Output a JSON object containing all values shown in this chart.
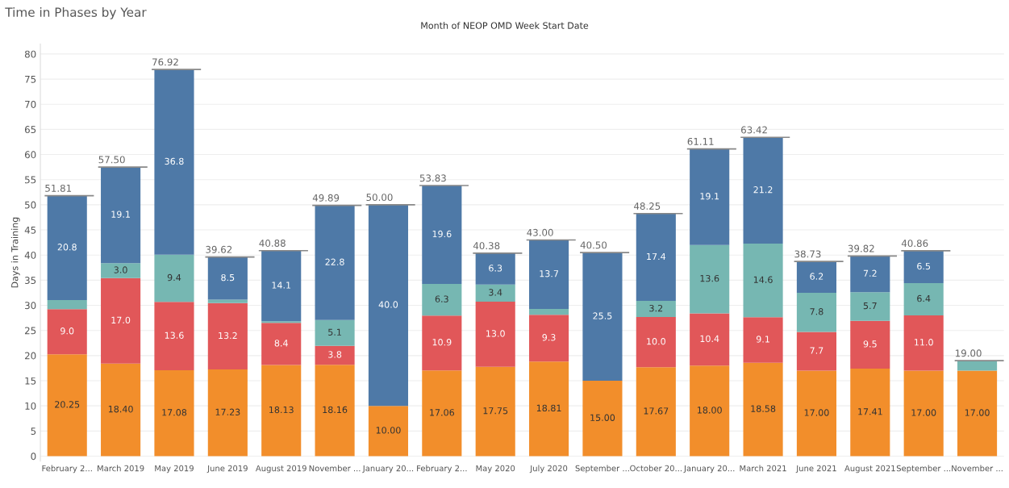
{
  "chart_data": {
    "type": "bar",
    "stacked": true,
    "title": "Time in Phases by Year",
    "subtitle": "Month of NEOP OMD Week Start Date",
    "ylabel": "Days in Training",
    "categories": [
      "February 2...",
      "March 2019",
      "May 2019",
      "June 2019",
      "August 2019",
      "November ...",
      "January 20...",
      "February 2...",
      "May 2020",
      "July 2020",
      "September ...",
      "October 20...",
      "January 20...",
      "March 2021",
      "June 2021",
      "August 2021",
      "September ...",
      "November ..."
    ],
    "series": [
      {
        "color": "#f28e2b",
        "values": [
          20.25,
          18.4,
          17.08,
          17.23,
          18.13,
          18.16,
          10.0,
          17.06,
          17.75,
          18.81,
          15.0,
          17.67,
          18.0,
          18.58,
          17.0,
          17.41,
          17.0,
          17.0
        ],
        "value_labels": [
          "20.25",
          "18.40",
          "17.08",
          "17.23",
          "18.13",
          "18.16",
          "10.00",
          "17.06",
          "17.75",
          "18.81",
          "15.00",
          "17.67",
          "18.00",
          "18.58",
          "17.00",
          "17.41",
          "17.00",
          "17.00"
        ]
      },
      {
        "color": "#e15759",
        "values": [
          9.0,
          17.0,
          13.6,
          13.2,
          8.4,
          3.8,
          null,
          10.9,
          12.97,
          9.3,
          null,
          10.0,
          10.4,
          9.06,
          7.7,
          9.5,
          11.0,
          null
        ],
        "value_labels": [
          "9.0",
          "17.0",
          "13.6",
          "13.2",
          "8.4",
          "3.8",
          null,
          "10.9",
          "13.0",
          "9.3",
          null,
          "10.0",
          "10.4",
          "9.1",
          "7.7",
          "9.5",
          "11.0",
          null
        ]
      },
      {
        "color": "#76b7b2",
        "values": [
          1.8,
          3.0,
          9.4,
          0.69,
          0.3,
          5.1,
          null,
          6.3,
          3.4,
          1.19,
          null,
          3.2,
          13.6,
          14.62,
          7.8,
          5.7,
          6.4,
          2.0
        ],
        "value_labels": [
          null,
          "3.0",
          "9.4",
          null,
          null,
          "5.1",
          null,
          "6.3",
          "3.4",
          null,
          null,
          "3.2",
          "13.6",
          "14.6",
          "7.8",
          "5.7",
          "6.4",
          null
        ]
      },
      {
        "color": "#4e79a7",
        "values": [
          20.76,
          19.1,
          36.84,
          8.5,
          14.05,
          22.83,
          40.0,
          19.57,
          6.26,
          13.7,
          25.5,
          17.38,
          19.11,
          21.16,
          6.23,
          7.21,
          6.46,
          null
        ],
        "value_labels": [
          "20.8",
          "19.1",
          "36.8",
          "8.5",
          "14.1",
          "22.8",
          "40.0",
          "19.6",
          "6.3",
          "13.7",
          "25.5",
          "17.4",
          "19.1",
          "21.2",
          "6.2",
          "7.2",
          "6.5",
          null
        ]
      }
    ],
    "totals": [
      "51.81",
      "57.50",
      "76.92",
      "39.62",
      "40.88",
      "49.89",
      "50.00",
      "53.83",
      "40.38",
      "43.00",
      "40.50",
      "48.25",
      "61.11",
      "63.42",
      "38.73",
      "39.82",
      "40.86",
      "19.00"
    ],
    "ylim": [
      -1,
      82
    ],
    "yticks": [
      0,
      5,
      10,
      15,
      20,
      25,
      30,
      35,
      40,
      45,
      50,
      55,
      60,
      65,
      70,
      75,
      80
    ],
    "grid": "y",
    "legend": false
  }
}
